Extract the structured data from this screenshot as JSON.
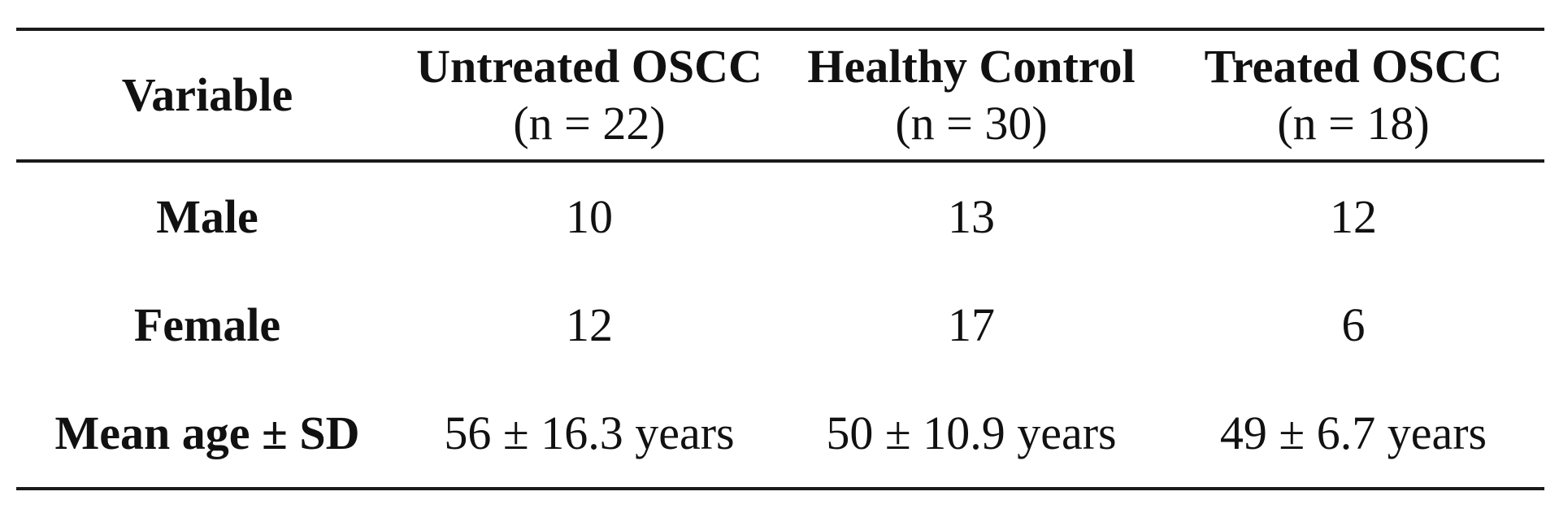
{
  "table": {
    "headers": [
      {
        "title": "Variable",
        "sub": ""
      },
      {
        "title": "Untreated OSCC",
        "sub": "(n = 22)"
      },
      {
        "title": "Healthy Control",
        "sub": "(n = 30)"
      },
      {
        "title": "Treated OSCC",
        "sub": "(n = 18)"
      }
    ],
    "rows": [
      {
        "variable": "Male",
        "values": [
          "10",
          "13",
          "12"
        ]
      },
      {
        "variable": "Female",
        "values": [
          "12",
          "17",
          "6"
        ]
      },
      {
        "variable": "Mean age ± SD",
        "values": [
          "56 ± 16.3 years",
          "50 ± 10.9 years",
          "49 ± 6.7 years"
        ]
      }
    ]
  }
}
